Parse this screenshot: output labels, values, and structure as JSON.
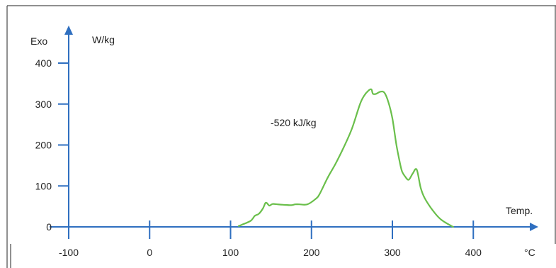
{
  "colors": {
    "axis": "#2f6fc0",
    "curve": "#6abf4b",
    "frame": "#222222"
  },
  "chart_data": {
    "type": "line",
    "y_indicator": "Exo",
    "ylabel": "W/kg",
    "xlabel": "Temp.",
    "x_unit": "°C",
    "annotation": "-520 kJ/kg",
    "xlim": [
      -100,
      450
    ],
    "ylim": [
      0,
      460
    ],
    "x_ticks": [
      -100,
      0,
      100,
      200,
      300,
      400
    ],
    "y_ticks": [
      0,
      100,
      200,
      300,
      400
    ],
    "grid": false,
    "series": [
      {
        "x": [
          110,
          115,
          125,
          130,
          135,
          140,
          143,
          145,
          148,
          152,
          158,
          165,
          175,
          180,
          185,
          195,
          205,
          210,
          220,
          230,
          240,
          250,
          260,
          265,
          270,
          274,
          276,
          280,
          285,
          290,
          295,
          300,
          305,
          310,
          312,
          315,
          320,
          325,
          330,
          335,
          340,
          350,
          360,
          375
        ],
        "y": [
          2,
          6,
          15,
          27,
          32,
          45,
          58,
          58,
          52,
          56,
          55,
          54,
          53,
          55,
          55,
          55,
          68,
          80,
          120,
          155,
          195,
          240,
          300,
          320,
          332,
          336,
          325,
          325,
          330,
          328,
          305,
          265,
          200,
          150,
          135,
          125,
          115,
          130,
          140,
          95,
          70,
          40,
          18,
          0
        ]
      }
    ]
  }
}
